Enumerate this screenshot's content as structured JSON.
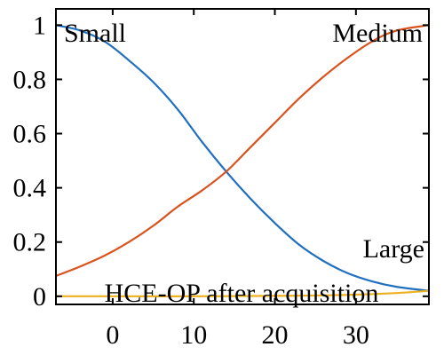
{
  "chart_data": {
    "type": "line",
    "xlim": [
      -7,
      39
    ],
    "ylim": [
      -0.03,
      1.06
    ],
    "xticks": [
      0,
      10,
      20,
      30
    ],
    "xtick_labels": [
      "0",
      "10",
      "20",
      "30"
    ],
    "yticks": [
      0,
      0.2,
      0.4,
      0.6,
      0.8,
      1
    ],
    "ytick_labels": [
      "0",
      "0.2",
      "0.4",
      "0.6",
      "0.8",
      "1"
    ],
    "grid": false,
    "legend": "none",
    "annotations": {
      "small": "Small",
      "medium": "Medium",
      "large": "Large",
      "xlabel": "HCE-OP after acquisition"
    },
    "series": [
      {
        "color": "#1f6fc0",
        "x": [
          -7,
          -4,
          -1,
          2,
          5,
          8,
          11,
          14,
          17,
          20,
          23,
          26,
          29,
          32,
          35,
          39
        ],
        "y": [
          1.0,
          0.98,
          0.94,
          0.87,
          0.79,
          0.69,
          0.57,
          0.46,
          0.36,
          0.27,
          0.19,
          0.13,
          0.085,
          0.055,
          0.035,
          0.02
        ]
      },
      {
        "color": "#d9531e",
        "x": [
          -7,
          -4,
          -1,
          2,
          5,
          8,
          11,
          14,
          17,
          20,
          23,
          26,
          29,
          32,
          35,
          39
        ],
        "y": [
          0.075,
          0.11,
          0.15,
          0.2,
          0.26,
          0.33,
          0.39,
          0.46,
          0.55,
          0.64,
          0.73,
          0.81,
          0.88,
          0.94,
          0.98,
          1.0
        ]
      },
      {
        "color": "#edb120",
        "x": [
          -7,
          0,
          10,
          20,
          25,
          30,
          35,
          39
        ],
        "y": [
          0.0,
          0.0,
          0.0,
          0.0015,
          0.003,
          0.006,
          0.012,
          0.02
        ]
      }
    ]
  }
}
